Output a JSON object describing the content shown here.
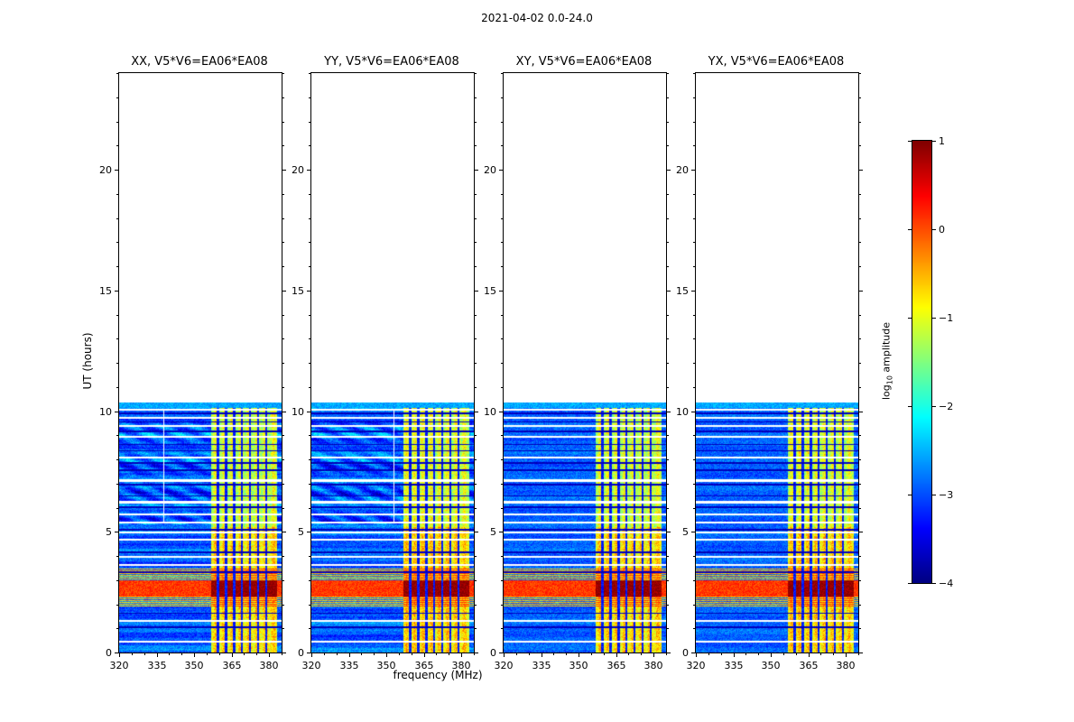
{
  "figure": {
    "title": "2021-04-02 0.0-24.0",
    "xlabel": "frequency (MHz)",
    "ylabel": "UT (hours)",
    "colorbar_label_prefix": "log",
    "colorbar_label_sub": "10",
    "colorbar_label_suffix": " amplitude"
  },
  "panels": [
    {
      "title": "XX, V5*V6=EA06*EA08",
      "seed": 101,
      "wavy": true,
      "white_column_mhz": 338.0
    },
    {
      "title": "YY, V5*V6=EA06*EA08",
      "seed": 202,
      "wavy": true,
      "white_column_mhz": 353.0
    },
    {
      "title": "XY, V5*V6=EA06*EA08",
      "seed": 303,
      "wavy": false,
      "white_column_mhz": null
    },
    {
      "title": "YX, V5*V6=EA06*EA08",
      "seed": 404,
      "wavy": false,
      "white_column_mhz": null
    }
  ],
  "axes": {
    "x_range": [
      320,
      385
    ],
    "x_ticks": [
      320,
      335,
      350,
      365,
      380
    ],
    "x_minor_step": 5,
    "y_range": [
      0,
      24
    ],
    "y_ticks": [
      0,
      5,
      10,
      15,
      20
    ],
    "y_minor_step": 1
  },
  "colorbar": {
    "ticks": [
      "1",
      "0",
      "−1",
      "−2",
      "−3",
      "−4"
    ],
    "tick_values": [
      1,
      0,
      -1,
      -2,
      -3,
      -4
    ],
    "range": [
      -4,
      1
    ],
    "colormap": "jet"
  },
  "chart_data": {
    "type": "heatmap",
    "title": "2021-04-02 0.0-24.0",
    "xlabel": "frequency (MHz)",
    "ylabel": "UT (hours)",
    "zlabel": "log10 amplitude",
    "colormap": "jet",
    "panels": [
      "XX, V5*V6=EA06*EA08",
      "YY, V5*V6=EA06*EA08",
      "XY, V5*V6=EA06*EA08",
      "YX, V5*V6=EA06*EA08"
    ],
    "x_range_mhz": [
      320,
      385
    ],
    "x_tick_labels": [
      320,
      335,
      350,
      365,
      380
    ],
    "y_range_hours": [
      0,
      24
    ],
    "y_tick_labels": [
      0,
      5,
      10,
      15,
      20
    ],
    "z_range_log10_amplitude": [
      -4,
      1
    ],
    "z_tick_labels": [
      1,
      0,
      -1,
      -2,
      -3,
      -4
    ],
    "data_coverage_hours": [
      0,
      10.35
    ],
    "features": {
      "background_level": -2.9,
      "rfi_band_mhz": [
        357.0,
        383.2
      ],
      "rfi_band_level": -1.0,
      "rfi_band_boost_below_hour": 5.2,
      "burst_hours": [
        2.32,
        2.98
      ],
      "burst_level_in_band": 0.9,
      "burst_level_broadband": 0.1,
      "blank_row_hours": [
        0.45,
        1.32,
        3.62,
        3.95,
        4.68,
        4.98,
        5.38,
        5.72,
        6.22,
        7.12,
        8.08,
        8.92,
        9.38,
        9.72,
        10.06
      ],
      "dark_row_hours": [
        1.05,
        1.62,
        3.32,
        4.15,
        5.08,
        6.02,
        6.48,
        6.95,
        7.55,
        7.85,
        8.35,
        8.62,
        9.15,
        9.55,
        9.9
      ],
      "dark_column_mhz": [
        359.6,
        362.8,
        366.0,
        369.2,
        372.4,
        375.6,
        378.8
      ]
    }
  }
}
